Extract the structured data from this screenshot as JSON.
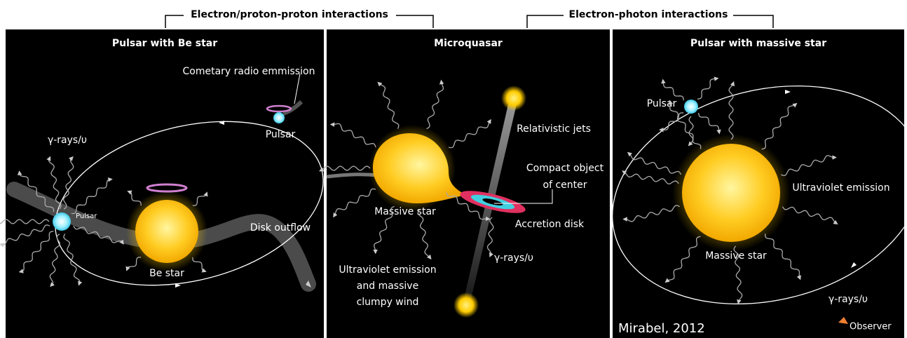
{
  "header": {
    "brackets": [
      "Electron/proton-proton interactions",
      "Electron-photon interactions"
    ]
  },
  "panels": [
    {
      "title": "Pulsar with Be star",
      "labels": {
        "radio": "Cometary radio emmission",
        "pulsar": "Pulsar",
        "gamma": "γ-rays/υ",
        "pulsar_small": "Pulsar",
        "outflow": "Disk outflow",
        "star": "Be star"
      }
    },
    {
      "title": "Microquasar",
      "labels": {
        "jets": "Relativistic jets",
        "compact": [
          "Compact object",
          "of center"
        ],
        "star": "Massive star",
        "disk": "Accretion disk",
        "gamma": "γ-rays/υ",
        "wind": [
          "Ultraviolet emission",
          "and massive",
          "clumpy wind"
        ]
      }
    },
    {
      "title": "Pulsar with massive star",
      "labels": {
        "pulsar": "Pulsar",
        "uv": "Ultraviolet emission",
        "star": "Massive star",
        "gamma": "γ-rays/υ",
        "observer": "Observer",
        "credit": "Mirabel, 2012"
      }
    }
  ]
}
